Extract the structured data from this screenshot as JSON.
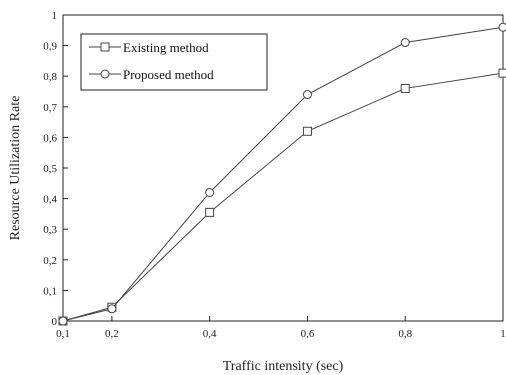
{
  "chart_data": {
    "type": "line",
    "title": "",
    "xlabel": "Traffic intensity (sec)",
    "ylabel": "Resource Utilization  Rate",
    "x": [
      0.1,
      0.2,
      0.4,
      0.6,
      0.8,
      1.0
    ],
    "x_tick_labels": [
      "0,1",
      "0,2",
      "0,4",
      "0,6",
      "0,8",
      "1"
    ],
    "xlim": [
      0.1,
      1.0
    ],
    "ylim": [
      0,
      1
    ],
    "y_ticks": [
      0,
      0.1,
      0.2,
      0.3,
      0.4,
      0.5,
      0.6,
      0.7,
      0.8,
      0.9,
      1
    ],
    "y_tick_labels": [
      "0",
      "0,1",
      "0,2",
      "0,3",
      "0,4",
      "0,5",
      "0,6",
      "0,7",
      "0,8",
      "0,9",
      "1"
    ],
    "grid": false,
    "legend_position": "top-left",
    "series": [
      {
        "name": "Existing method",
        "marker": "square",
        "color": "#444444",
        "values": [
          0.0,
          0.045,
          0.355,
          0.62,
          0.76,
          0.81
        ]
      },
      {
        "name": "Proposed method",
        "marker": "circle",
        "color": "#444444",
        "values": [
          0.0,
          0.04,
          0.42,
          0.74,
          0.91,
          0.96
        ]
      }
    ]
  }
}
